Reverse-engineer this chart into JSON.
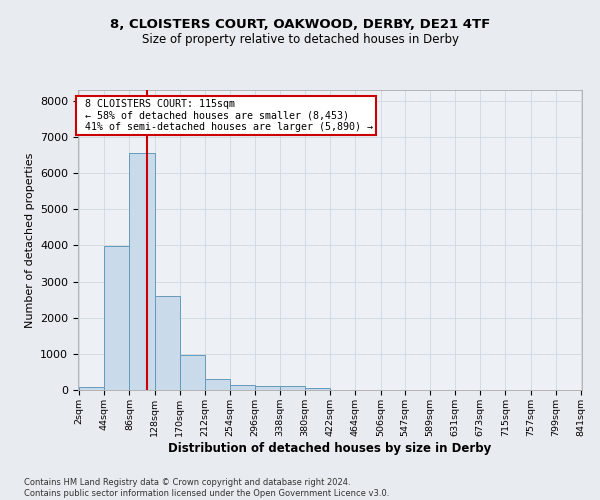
{
  "title1": "8, CLOISTERS COURT, OAKWOOD, DERBY, DE21 4TF",
  "title2": "Size of property relative to detached houses in Derby",
  "xlabel": "Distribution of detached houses by size in Derby",
  "ylabel": "Number of detached properties",
  "footnote": "Contains HM Land Registry data © Crown copyright and database right 2024.\nContains public sector information licensed under the Open Government Licence v3.0.",
  "bin_edges": [
    2,
    44,
    86,
    128,
    170,
    212,
    254,
    296,
    338,
    380,
    422,
    464,
    506,
    547,
    589,
    631,
    673,
    715,
    757,
    799,
    841
  ],
  "bar_heights": [
    80,
    3980,
    6550,
    2600,
    960,
    300,
    130,
    100,
    100,
    50,
    0,
    0,
    0,
    0,
    0,
    0,
    0,
    0,
    0,
    0
  ],
  "bar_color": "#c9daea",
  "bar_edge_color": "#6699bb",
  "vline_x": 115,
  "vline_color": "#cc0000",
  "annotation_text": " 8 CLOISTERS COURT: 115sqm\n ← 58% of detached houses are smaller (8,453)\n 41% of semi-detached houses are larger (5,890) →",
  "annotation_box_color": "#cc0000",
  "annotation_text_color": "#000000",
  "ylim": [
    0,
    8300
  ],
  "yticks": [
    0,
    1000,
    2000,
    3000,
    4000,
    5000,
    6000,
    7000,
    8000
  ],
  "grid_color": "#d0d8e0",
  "bg_color": "#e8ecf0",
  "plot_bg_color": "#edf1f5"
}
